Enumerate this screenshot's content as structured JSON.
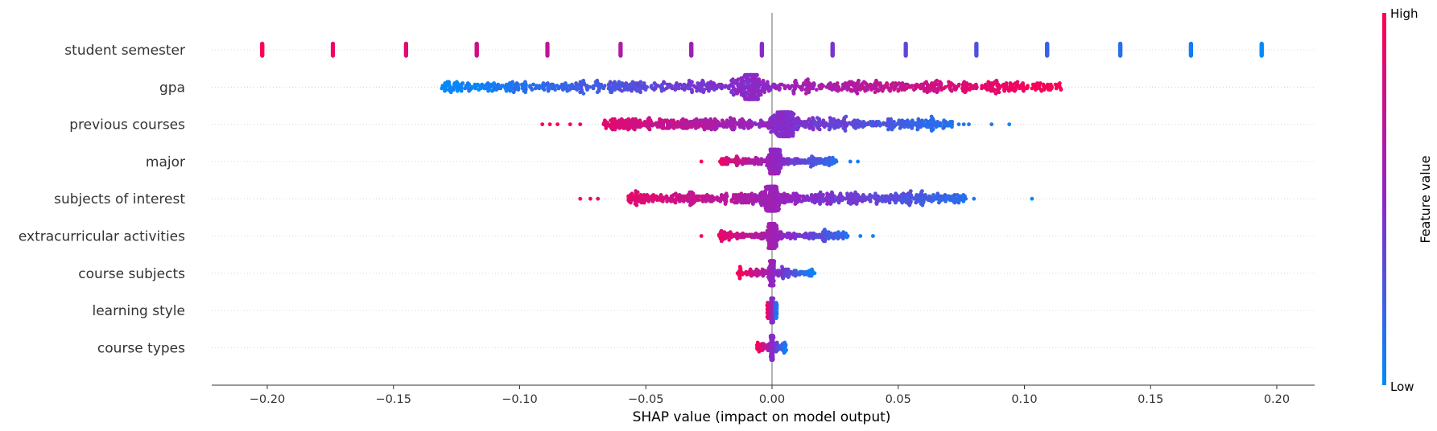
{
  "chart_data": {
    "type": "scatter",
    "subtype": "shap-beeswarm",
    "title": "",
    "xlabel": "SHAP value (impact on model output)",
    "ylabel": "",
    "xlim": [
      -0.222,
      0.215
    ],
    "x_ticks": [
      -0.2,
      -0.15,
      -0.1,
      -0.05,
      0.0,
      0.05,
      0.1,
      0.15,
      0.2
    ],
    "x_tick_labels": [
      "−0.20",
      "−0.15",
      "−0.10",
      "−0.05",
      "0.00",
      "0.05",
      "0.10",
      "0.15",
      "0.20"
    ],
    "zero_line": true,
    "row_gridlines": "dotted",
    "colorbar": {
      "title": "Feature value",
      "high_label": "High",
      "low_label": "Low",
      "high_color": "#ff0051",
      "mid_color": "#8c28c8",
      "low_color": "#008bfb"
    },
    "features": [
      {
        "name": "student semester",
        "kind": "discrete",
        "levels": [
          {
            "x": -0.202,
            "feature_value": 1.0
          },
          {
            "x": -0.174,
            "feature_value": 0.93
          },
          {
            "x": -0.145,
            "feature_value": 0.86
          },
          {
            "x": -0.117,
            "feature_value": 0.79
          },
          {
            "x": -0.089,
            "feature_value": 0.72
          },
          {
            "x": -0.06,
            "feature_value": 0.64
          },
          {
            "x": -0.032,
            "feature_value": 0.57
          },
          {
            "x": -0.004,
            "feature_value": 0.5
          },
          {
            "x": 0.024,
            "feature_value": 0.43
          },
          {
            "x": 0.053,
            "feature_value": 0.36
          },
          {
            "x": 0.081,
            "feature_value": 0.29
          },
          {
            "x": 0.109,
            "feature_value": 0.21
          },
          {
            "x": 0.138,
            "feature_value": 0.14
          },
          {
            "x": 0.166,
            "feature_value": 0.07
          },
          {
            "x": 0.194,
            "feature_value": 0.0
          }
        ]
      },
      {
        "name": "gpa",
        "kind": "continuous",
        "x_min": -0.131,
        "x_max": 0.115,
        "low_side": "negative",
        "dense_center": -0.008,
        "dense_width": 0.01
      },
      {
        "name": "previous courses",
        "kind": "continuous",
        "x_min": -0.091,
        "x_max": 0.094,
        "low_side": "positive",
        "dense_center": 0.005,
        "dense_width": 0.012,
        "outliers": [
          -0.091,
          -0.088,
          -0.085,
          -0.08,
          -0.076,
          0.074,
          0.076,
          0.078,
          0.087,
          0.094
        ]
      },
      {
        "name": "major",
        "kind": "continuous",
        "x_min": -0.028,
        "x_max": 0.034,
        "low_side": "positive",
        "dense_center": 0.001,
        "dense_width": 0.006,
        "outliers": [
          -0.028,
          0.031,
          0.034
        ]
      },
      {
        "name": "subjects of interest",
        "kind": "continuous",
        "x_min": -0.076,
        "x_max": 0.103,
        "low_side": "positive",
        "dense_center": 0.0,
        "dense_width": 0.008,
        "outliers": [
          -0.076,
          -0.072,
          -0.069,
          -0.054,
          -0.047,
          -0.044,
          -0.04,
          -0.035,
          0.045,
          0.049,
          0.052,
          0.057,
          0.067,
          0.08,
          0.103
        ]
      },
      {
        "name": "extracurricular activities",
        "kind": "continuous",
        "x_min": -0.028,
        "x_max": 0.04,
        "low_side": "positive",
        "dense_center": 0.0,
        "dense_width": 0.004,
        "outliers": [
          -0.028,
          -0.02,
          -0.017,
          0.035,
          0.04
        ]
      },
      {
        "name": "course subjects",
        "kind": "continuous",
        "x_min": -0.014,
        "x_max": 0.017,
        "low_side": "positive",
        "dense_center": 0.0,
        "dense_width": 0.002
      },
      {
        "name": "learning style",
        "kind": "continuous",
        "x_min": -0.002,
        "x_max": 0.002,
        "low_side": "positive",
        "dense_center": 0.0,
        "dense_width": 0.001
      },
      {
        "name": "course types",
        "kind": "continuous",
        "x_min": -0.006,
        "x_max": 0.006,
        "low_side": "positive",
        "dense_center": 0.0,
        "dense_width": 0.001
      }
    ]
  }
}
